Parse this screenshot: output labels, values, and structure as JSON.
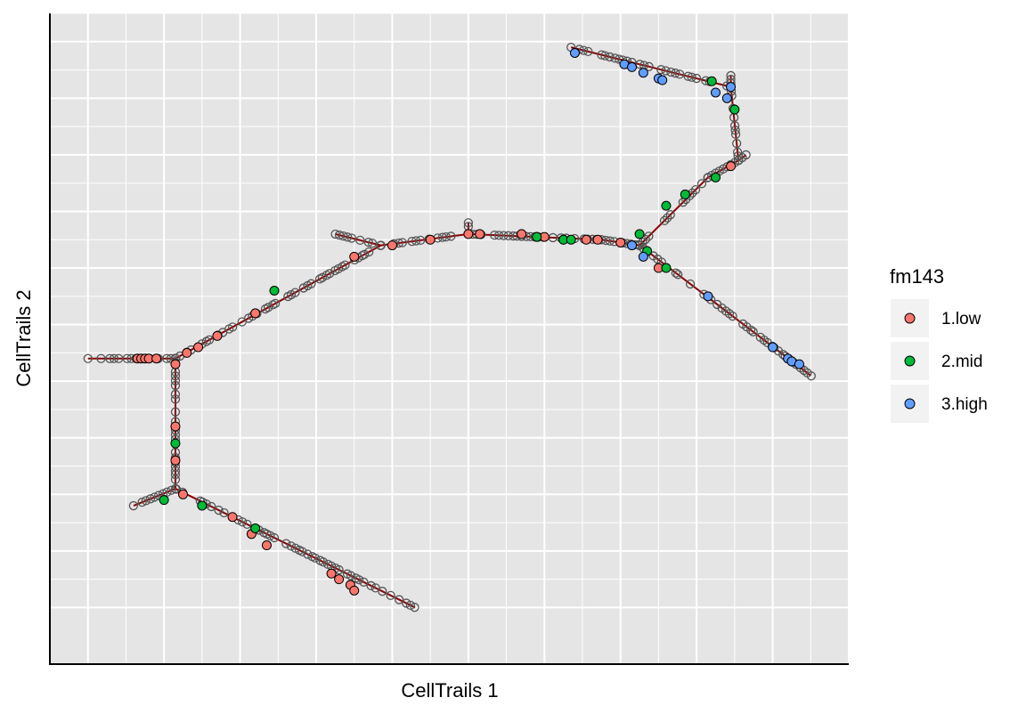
{
  "chart_data": {
    "type": "scatter",
    "title": "",
    "xlabel": "CellTrails 1",
    "ylabel": "CellTrails 2",
    "grid": true,
    "xticks_labeled": false,
    "yticks_labeled": false,
    "xlim": [
      -1,
      20
    ],
    "ylim": [
      -1,
      10.5
    ],
    "legend": {
      "title": "fm143",
      "position": "right",
      "entries": [
        {
          "name": "1.low",
          "color": "#F8766D"
        },
        {
          "name": "2.mid",
          "color": "#00BA38"
        },
        {
          "name": "3.high",
          "color": "#619CFF"
        }
      ]
    },
    "colors": {
      "panel_bg": "#E5E5E5",
      "grid": "#FFFFFF",
      "trajectory": "#8B0000",
      "unlabeled_stroke": "#555555"
    },
    "trajectory_segments": [
      [
        [
          0,
          4.4
        ],
        [
          2.3,
          4.4
        ]
      ],
      [
        [
          2.3,
          4.4
        ],
        [
          2.3,
          2.1
        ]
      ],
      [
        [
          2.3,
          2.1
        ],
        [
          1.2,
          1.8
        ]
      ],
      [
        [
          2.3,
          2.1
        ],
        [
          8.6,
          0
        ]
      ],
      [
        [
          2.3,
          4.4
        ],
        [
          7.7,
          6.4
        ]
      ],
      [
        [
          6.5,
          6.6
        ],
        [
          7.7,
          6.4
        ]
      ],
      [
        [
          7.7,
          6.4
        ],
        [
          10,
          6.6
        ]
      ],
      [
        [
          10,
          6.6
        ],
        [
          13.5,
          6.5
        ]
      ],
      [
        [
          10,
          6.6
        ],
        [
          10,
          6.8
        ]
      ],
      [
        [
          13.5,
          6.5
        ],
        [
          14.5,
          6.4
        ]
      ],
      [
        [
          14.5,
          6.4
        ],
        [
          19,
          4.1
        ]
      ],
      [
        [
          14.5,
          6.4
        ],
        [
          16.3,
          7.6
        ]
      ],
      [
        [
          16.3,
          7.6
        ],
        [
          17.1,
          7.9
        ]
      ],
      [
        [
          17.1,
          7.9
        ],
        [
          17.3,
          8
        ]
      ],
      [
        [
          17.1,
          7.9
        ],
        [
          16.9,
          9.2
        ]
      ],
      [
        [
          16.9,
          9.2
        ],
        [
          12.7,
          9.9
        ]
      ],
      [
        [
          16.9,
          9.2
        ],
        [
          16.9,
          9.4
        ]
      ]
    ],
    "series": [
      {
        "name": "1.low",
        "color": "#F8766D",
        "points": [
          [
            1.3,
            4.4
          ],
          [
            1.4,
            4.4
          ],
          [
            1.5,
            4.4
          ],
          [
            1.6,
            4.4
          ],
          [
            1.8,
            4.4
          ],
          [
            2.3,
            4.3
          ],
          [
            2.3,
            3.2
          ],
          [
            2.3,
            2.6
          ],
          [
            2.5,
            2.0
          ],
          [
            3.8,
            1.6
          ],
          [
            4.3,
            1.3
          ],
          [
            4.7,
            1.1
          ],
          [
            6.4,
            0.6
          ],
          [
            6.6,
            0.5
          ],
          [
            6.9,
            0.4
          ],
          [
            7.0,
            0.3
          ],
          [
            2.6,
            4.5
          ],
          [
            2.9,
            4.6
          ],
          [
            3.4,
            4.8
          ],
          [
            4.4,
            5.2
          ],
          [
            7.0,
            6.2
          ],
          [
            8.0,
            6.4
          ],
          [
            9.0,
            6.5
          ],
          [
            10.0,
            6.6
          ],
          [
            10.3,
            6.6
          ],
          [
            11.4,
            6.6
          ],
          [
            11.8,
            6.55
          ],
          [
            12.0,
            6.55
          ],
          [
            12.5,
            6.5
          ],
          [
            13.1,
            6.5
          ],
          [
            13.4,
            6.5
          ],
          [
            14.0,
            6.45
          ],
          [
            15.0,
            6.0
          ],
          [
            16.9,
            7.8
          ]
        ]
      },
      {
        "name": "2.mid",
        "color": "#00BA38",
        "points": [
          [
            2.3,
            2.9
          ],
          [
            2.0,
            1.9
          ],
          [
            3.0,
            1.8
          ],
          [
            4.4,
            1.4
          ],
          [
            4.9,
            5.6
          ],
          [
            11.8,
            6.55
          ],
          [
            12.5,
            6.5
          ],
          [
            12.7,
            6.5
          ],
          [
            14.5,
            6.6
          ],
          [
            14.7,
            6.3
          ],
          [
            15.2,
            6.0
          ],
          [
            15.2,
            7.1
          ],
          [
            15.7,
            7.3
          ],
          [
            16.5,
            7.6
          ],
          [
            17.0,
            8.8
          ],
          [
            16.4,
            9.3
          ]
        ]
      },
      {
        "name": "3.high",
        "color": "#619CFF",
        "points": [
          [
            14.3,
            6.4
          ],
          [
            14.6,
            6.2
          ],
          [
            16.3,
            5.5
          ],
          [
            18.0,
            4.6
          ],
          [
            18.4,
            4.4
          ],
          [
            18.5,
            4.35
          ],
          [
            18.7,
            4.3
          ],
          [
            12.8,
            9.8
          ],
          [
            14.1,
            9.6
          ],
          [
            14.3,
            9.55
          ],
          [
            14.6,
            9.45
          ],
          [
            15.0,
            9.35
          ],
          [
            15.1,
            9.32
          ],
          [
            16.5,
            9.1
          ],
          [
            16.8,
            9.0
          ],
          [
            16.9,
            9.2
          ]
        ]
      }
    ]
  }
}
